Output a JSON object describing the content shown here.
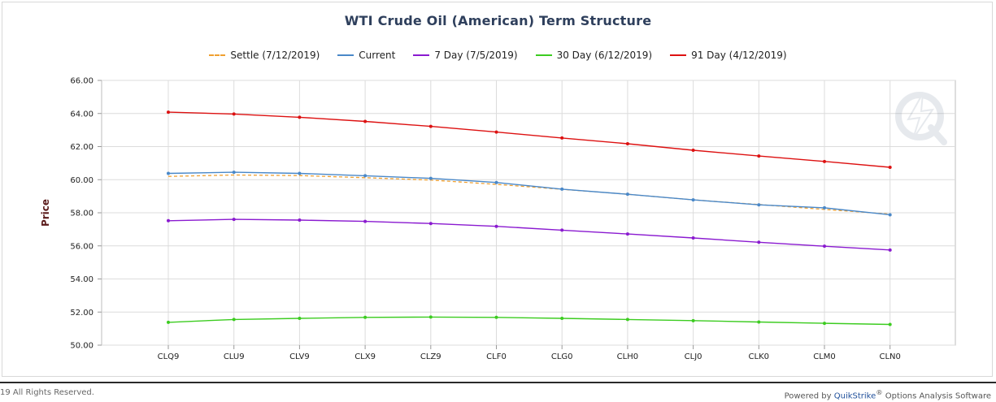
{
  "chart_data": {
    "type": "line",
    "title": "WTI Crude Oil (American) Term Structure",
    "ylabel": "Price",
    "xlabel": "",
    "ylim": [
      50,
      66
    ],
    "yticks": [
      "50.00",
      "52.00",
      "54.00",
      "56.00",
      "58.00",
      "60.00",
      "62.00",
      "64.00",
      "66.00"
    ],
    "categories": [
      "CLQ9",
      "CLU9",
      "CLV9",
      "CLX9",
      "CLZ9",
      "CLF0",
      "CLG0",
      "CLH0",
      "CLJ0",
      "CLK0",
      "CLM0",
      "CLN0"
    ],
    "grid": true,
    "legend_position": "top",
    "series": [
      {
        "name": "Settle (7/12/2019)",
        "color": "#f0a030",
        "dashed": true,
        "markers": false,
        "values": [
          60.2,
          60.28,
          60.25,
          60.12,
          59.98,
          59.72,
          59.42,
          59.12,
          58.78,
          58.5,
          58.2,
          57.92
        ]
      },
      {
        "name": "Current",
        "color": "#4a88c8",
        "dashed": false,
        "markers": true,
        "values": [
          60.38,
          60.45,
          60.38,
          60.24,
          60.08,
          59.83,
          59.43,
          59.12,
          58.78,
          58.48,
          58.3,
          57.88
        ]
      },
      {
        "name": "7 Day (7/5/2019)",
        "color": "#8a1ad0",
        "dashed": false,
        "markers": true,
        "values": [
          57.52,
          57.6,
          57.56,
          57.48,
          57.35,
          57.18,
          56.95,
          56.72,
          56.48,
          56.22,
          55.98,
          55.75
        ]
      },
      {
        "name": "30 Day (6/12/2019)",
        "color": "#3ccc20",
        "dashed": false,
        "markers": true,
        "values": [
          51.38,
          51.55,
          51.62,
          51.68,
          51.7,
          51.68,
          51.62,
          51.55,
          51.48,
          51.4,
          51.32,
          51.25
        ]
      },
      {
        "name": "91 Day (4/12/2019)",
        "color": "#dd1111",
        "dashed": false,
        "markers": true,
        "values": [
          64.08,
          63.97,
          63.77,
          63.52,
          63.22,
          62.88,
          62.52,
          62.17,
          61.78,
          61.43,
          61.1,
          60.75
        ]
      }
    ]
  },
  "footer": {
    "copyright": "19 All Rights Reserved.",
    "powered_by": "Powered by",
    "brand": "QuikStrike",
    "trademark": "®",
    "suffix": " Options Analysis Software"
  }
}
